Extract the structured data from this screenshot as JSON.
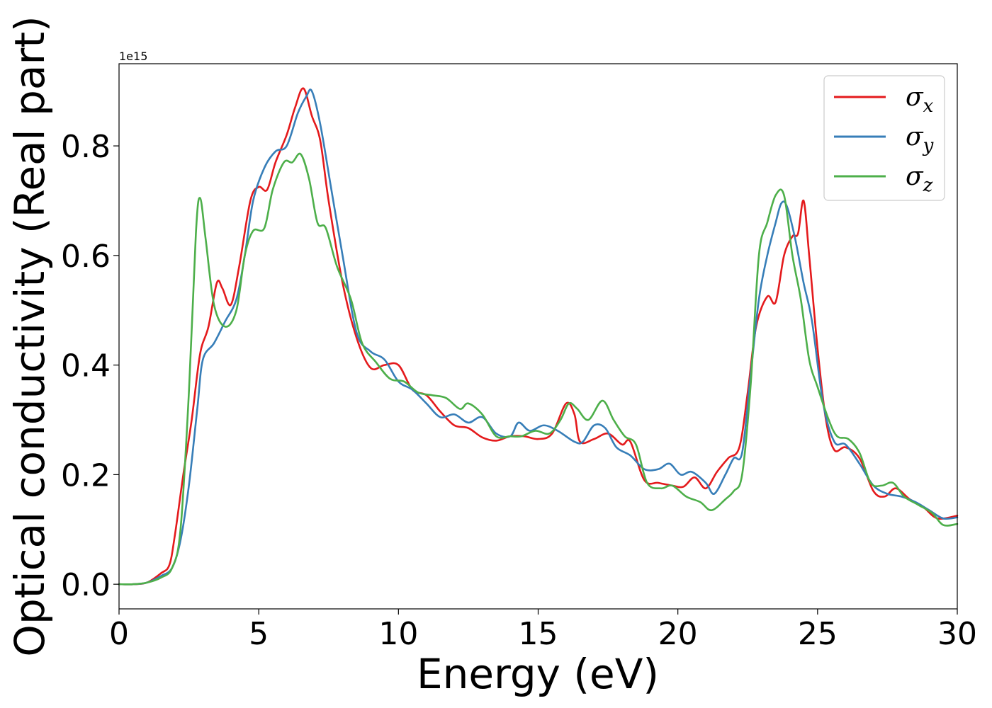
{
  "chart_data": {
    "type": "line",
    "title": "",
    "xlabel": "Energy (eV)",
    "ylabel": "Optical conductivity (Real part)",
    "y_offset_label": "1e15",
    "xlim": [
      0,
      30
    ],
    "ylim": [
      -0.045,
      0.95
    ],
    "x_ticks": [
      0,
      5,
      10,
      15,
      20,
      25,
      30
    ],
    "x_tick_labels": [
      "0",
      "5",
      "10",
      "15",
      "20",
      "25",
      "30"
    ],
    "y_ticks": [
      0.0,
      0.2,
      0.4,
      0.6,
      0.8
    ],
    "y_tick_labels": [
      "0.0",
      "0.2",
      "0.4",
      "0.6",
      "0.8"
    ],
    "grid": false,
    "legend_position": "top-right",
    "series": [
      {
        "name": "σx",
        "symbol": "σ",
        "subscript": "x",
        "color": "#e41a1c",
        "points": [
          [
            0,
            0
          ],
          [
            0.5,
            0.0
          ],
          [
            1.0,
            0.003
          ],
          [
            1.5,
            0.02
          ],
          [
            1.8,
            0.035
          ],
          [
            2.0,
            0.09
          ],
          [
            2.3,
            0.2
          ],
          [
            2.6,
            0.3
          ],
          [
            2.9,
            0.42
          ],
          [
            3.2,
            0.47
          ],
          [
            3.5,
            0.55
          ],
          [
            3.7,
            0.54
          ],
          [
            4.0,
            0.51
          ],
          [
            4.3,
            0.58
          ],
          [
            4.7,
            0.7
          ],
          [
            5.0,
            0.725
          ],
          [
            5.3,
            0.72
          ],
          [
            5.6,
            0.77
          ],
          [
            6.0,
            0.82
          ],
          [
            6.3,
            0.87
          ],
          [
            6.6,
            0.905
          ],
          [
            6.9,
            0.855
          ],
          [
            7.2,
            0.81
          ],
          [
            7.5,
            0.7
          ],
          [
            8.0,
            0.55
          ],
          [
            8.5,
            0.45
          ],
          [
            9.0,
            0.395
          ],
          [
            9.5,
            0.4
          ],
          [
            10.0,
            0.4
          ],
          [
            10.5,
            0.355
          ],
          [
            11.0,
            0.345
          ],
          [
            11.5,
            0.315
          ],
          [
            12.0,
            0.29
          ],
          [
            12.5,
            0.285
          ],
          [
            13.0,
            0.268
          ],
          [
            13.5,
            0.262
          ],
          [
            14.0,
            0.27
          ],
          [
            14.5,
            0.27
          ],
          [
            15.0,
            0.265
          ],
          [
            15.5,
            0.275
          ],
          [
            16.0,
            0.33
          ],
          [
            16.3,
            0.31
          ],
          [
            16.5,
            0.26
          ],
          [
            17.0,
            0.265
          ],
          [
            17.5,
            0.275
          ],
          [
            18.0,
            0.255
          ],
          [
            18.3,
            0.26
          ],
          [
            18.8,
            0.19
          ],
          [
            19.3,
            0.185
          ],
          [
            19.8,
            0.18
          ],
          [
            20.2,
            0.178
          ],
          [
            20.6,
            0.195
          ],
          [
            21.0,
            0.175
          ],
          [
            21.4,
            0.205
          ],
          [
            21.8,
            0.23
          ],
          [
            22.2,
            0.25
          ],
          [
            22.5,
            0.35
          ],
          [
            22.8,
            0.47
          ],
          [
            23.2,
            0.525
          ],
          [
            23.5,
            0.515
          ],
          [
            23.8,
            0.6
          ],
          [
            24.1,
            0.635
          ],
          [
            24.3,
            0.64
          ],
          [
            24.5,
            0.7
          ],
          [
            24.7,
            0.6
          ],
          [
            25.0,
            0.43
          ],
          [
            25.3,
            0.3
          ],
          [
            25.6,
            0.245
          ],
          [
            26.0,
            0.25
          ],
          [
            26.5,
            0.23
          ],
          [
            27.0,
            0.17
          ],
          [
            27.4,
            0.16
          ],
          [
            27.8,
            0.175
          ],
          [
            28.3,
            0.155
          ],
          [
            28.8,
            0.14
          ],
          [
            29.3,
            0.12
          ],
          [
            30,
            0.125
          ]
        ]
      },
      {
        "name": "σy",
        "symbol": "σ",
        "subscript": "y",
        "color": "#377eb8",
        "points": [
          [
            0,
            0
          ],
          [
            0.5,
            0.0
          ],
          [
            1.0,
            0.003
          ],
          [
            1.5,
            0.015
          ],
          [
            1.9,
            0.03
          ],
          [
            2.2,
            0.08
          ],
          [
            2.5,
            0.18
          ],
          [
            2.8,
            0.32
          ],
          [
            3.0,
            0.41
          ],
          [
            3.4,
            0.44
          ],
          [
            3.8,
            0.48
          ],
          [
            4.2,
            0.52
          ],
          [
            4.5,
            0.6
          ],
          [
            4.8,
            0.7
          ],
          [
            5.2,
            0.76
          ],
          [
            5.6,
            0.79
          ],
          [
            6.0,
            0.8
          ],
          [
            6.4,
            0.86
          ],
          [
            6.7,
            0.89
          ],
          [
            6.9,
            0.9
          ],
          [
            7.2,
            0.84
          ],
          [
            7.6,
            0.72
          ],
          [
            8.0,
            0.6
          ],
          [
            8.5,
            0.46
          ],
          [
            9.0,
            0.425
          ],
          [
            9.5,
            0.41
          ],
          [
            10.0,
            0.37
          ],
          [
            10.5,
            0.355
          ],
          [
            11.0,
            0.33
          ],
          [
            11.5,
            0.305
          ],
          [
            12.0,
            0.31
          ],
          [
            12.5,
            0.295
          ],
          [
            13.0,
            0.305
          ],
          [
            13.5,
            0.275
          ],
          [
            14.0,
            0.27
          ],
          [
            14.3,
            0.295
          ],
          [
            14.7,
            0.28
          ],
          [
            15.2,
            0.29
          ],
          [
            15.7,
            0.28
          ],
          [
            16.3,
            0.26
          ],
          [
            16.6,
            0.26
          ],
          [
            17.0,
            0.29
          ],
          [
            17.4,
            0.285
          ],
          [
            17.8,
            0.25
          ],
          [
            18.3,
            0.235
          ],
          [
            18.8,
            0.21
          ],
          [
            19.3,
            0.21
          ],
          [
            19.7,
            0.22
          ],
          [
            20.1,
            0.2
          ],
          [
            20.5,
            0.205
          ],
          [
            21.0,
            0.185
          ],
          [
            21.3,
            0.165
          ],
          [
            21.7,
            0.2
          ],
          [
            22.0,
            0.23
          ],
          [
            22.3,
            0.24
          ],
          [
            22.6,
            0.38
          ],
          [
            22.9,
            0.52
          ],
          [
            23.2,
            0.6
          ],
          [
            23.5,
            0.66
          ],
          [
            23.7,
            0.695
          ],
          [
            23.9,
            0.69
          ],
          [
            24.2,
            0.63
          ],
          [
            24.5,
            0.55
          ],
          [
            24.8,
            0.48
          ],
          [
            25.2,
            0.33
          ],
          [
            25.6,
            0.26
          ],
          [
            26.0,
            0.255
          ],
          [
            26.5,
            0.22
          ],
          [
            27.0,
            0.18
          ],
          [
            27.5,
            0.165
          ],
          [
            28.0,
            0.16
          ],
          [
            28.5,
            0.15
          ],
          [
            29.0,
            0.135
          ],
          [
            29.5,
            0.12
          ],
          [
            30,
            0.122
          ]
        ]
      },
      {
        "name": "σz",
        "symbol": "σ",
        "subscript": "z",
        "color": "#4daf4a",
        "points": [
          [
            0,
            0
          ],
          [
            0.5,
            0.0
          ],
          [
            1.0,
            0.003
          ],
          [
            1.5,
            0.012
          ],
          [
            1.9,
            0.03
          ],
          [
            2.2,
            0.1
          ],
          [
            2.5,
            0.35
          ],
          [
            2.75,
            0.64
          ],
          [
            2.9,
            0.705
          ],
          [
            3.1,
            0.63
          ],
          [
            3.4,
            0.51
          ],
          [
            3.8,
            0.47
          ],
          [
            4.2,
            0.5
          ],
          [
            4.5,
            0.6
          ],
          [
            4.8,
            0.645
          ],
          [
            5.2,
            0.65
          ],
          [
            5.5,
            0.72
          ],
          [
            5.9,
            0.77
          ],
          [
            6.2,
            0.77
          ],
          [
            6.5,
            0.785
          ],
          [
            6.8,
            0.74
          ],
          [
            7.1,
            0.66
          ],
          [
            7.4,
            0.65
          ],
          [
            7.8,
            0.58
          ],
          [
            8.3,
            0.52
          ],
          [
            8.7,
            0.44
          ],
          [
            9.2,
            0.405
          ],
          [
            9.7,
            0.375
          ],
          [
            10.2,
            0.37
          ],
          [
            10.7,
            0.35
          ],
          [
            11.2,
            0.345
          ],
          [
            11.7,
            0.34
          ],
          [
            12.2,
            0.32
          ],
          [
            12.5,
            0.33
          ],
          [
            13.0,
            0.31
          ],
          [
            13.5,
            0.27
          ],
          [
            14.0,
            0.27
          ],
          [
            14.4,
            0.27
          ],
          [
            14.9,
            0.28
          ],
          [
            15.4,
            0.275
          ],
          [
            15.8,
            0.3
          ],
          [
            16.1,
            0.33
          ],
          [
            16.4,
            0.32
          ],
          [
            16.8,
            0.3
          ],
          [
            17.3,
            0.335
          ],
          [
            17.7,
            0.3
          ],
          [
            18.1,
            0.27
          ],
          [
            18.5,
            0.255
          ],
          [
            18.9,
            0.185
          ],
          [
            19.4,
            0.175
          ],
          [
            19.8,
            0.18
          ],
          [
            20.3,
            0.16
          ],
          [
            20.8,
            0.15
          ],
          [
            21.2,
            0.135
          ],
          [
            21.7,
            0.155
          ],
          [
            22.0,
            0.17
          ],
          [
            22.3,
            0.2
          ],
          [
            22.6,
            0.36
          ],
          [
            22.9,
            0.6
          ],
          [
            23.2,
            0.66
          ],
          [
            23.5,
            0.71
          ],
          [
            23.8,
            0.71
          ],
          [
            24.1,
            0.6
          ],
          [
            24.4,
            0.52
          ],
          [
            24.7,
            0.41
          ],
          [
            25.0,
            0.36
          ],
          [
            25.4,
            0.3
          ],
          [
            25.7,
            0.27
          ],
          [
            26.1,
            0.265
          ],
          [
            26.5,
            0.24
          ],
          [
            26.9,
            0.185
          ],
          [
            27.3,
            0.18
          ],
          [
            27.7,
            0.185
          ],
          [
            28.1,
            0.16
          ],
          [
            28.6,
            0.145
          ],
          [
            29.1,
            0.13
          ],
          [
            29.5,
            0.108
          ],
          [
            30,
            0.11
          ]
        ]
      }
    ]
  }
}
